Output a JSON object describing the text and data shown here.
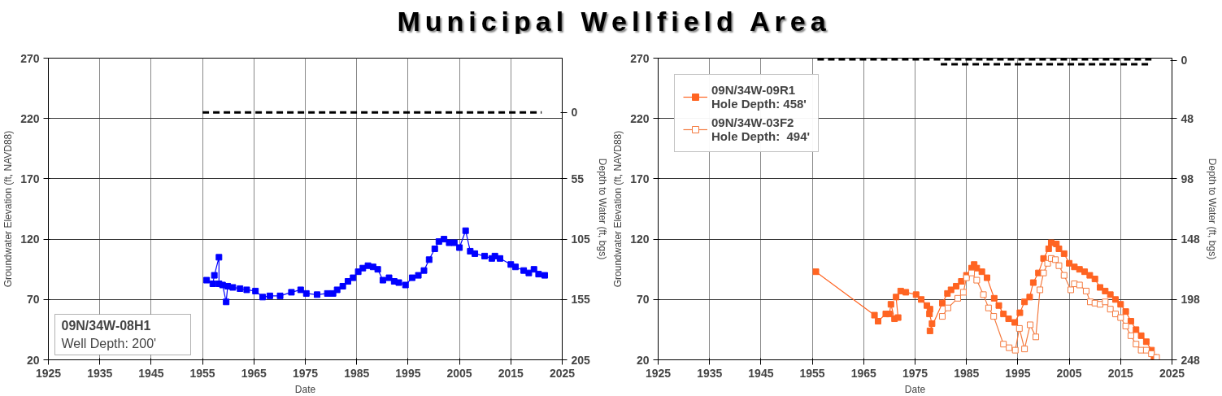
{
  "chart_data": [
    {
      "type": "line",
      "title": "Municipal Wellfield Area",
      "xlabel": "Date",
      "ylabel": "Groundwater Elevation (ft, NAVD88)",
      "y2label": "Depth to Water (ft, bgs)",
      "xlim": [
        1925,
        2025
      ],
      "xticks": [
        1925,
        1935,
        1945,
        1955,
        1965,
        1975,
        1985,
        1995,
        2005,
        2015,
        2025
      ],
      "ylim": [
        20,
        270
      ],
      "yticks": [
        20,
        70,
        120,
        170,
        220,
        270
      ],
      "y2lim": [
        205,
        -45
      ],
      "y2ticks": [
        0,
        55,
        105,
        155,
        205
      ],
      "grid": true,
      "marker": "square",
      "line_style": "solid",
      "annotations": [
        "09N/34W-08H1",
        "Well Depth: 200'"
      ],
      "series": [
        {
          "color": "#0000ff",
          "x": [
            1955.8,
            1957.0,
            1957.3,
            1958.2,
            1958.2,
            1958.9,
            1959.6,
            1959.9,
            1960.9,
            1962.3,
            1963.6,
            1965.3,
            1966.7,
            1968.1,
            1970.1,
            1972.3,
            1974.1,
            1975.2,
            1977.3,
            1979.3,
            1980.4,
            1981.2,
            1982.3,
            1983.3,
            1984.3,
            1985.3,
            1986.2,
            1987.2,
            1988.2,
            1989.1,
            1990.1,
            1991.3,
            1992.3,
            1993.2,
            1994.5,
            1995.8,
            1997.0,
            1998.1,
            1999.1,
            2000.2,
            2001.0,
            2002.0,
            2003.0,
            2004.0,
            2005.0,
            2006.2,
            2007.1,
            2008.0,
            2009.9,
            2011.3,
            2011.9,
            2012.9,
            2015.0,
            2015.9,
            2017.5,
            2018.5,
            2019.5,
            2020.4,
            2021.6
          ],
          "values": [
            86,
            83,
            90,
            105,
            83,
            82,
            68,
            81,
            80,
            79,
            78,
            77,
            72,
            73,
            73,
            76,
            78,
            75,
            74,
            75,
            75,
            78,
            81,
            85,
            88,
            93,
            96,
            98,
            97,
            95,
            86,
            88,
            85,
            84,
            82,
            88,
            90,
            94,
            103,
            112,
            118,
            120,
            117,
            117,
            113,
            127,
            110,
            108,
            106,
            104,
            106,
            104,
            99,
            97,
            94,
            92,
            95,
            91,
            90
          ]
        },
        {
          "color": "#000000",
          "axis": "y2",
          "marker": "none",
          "line_style": "dashed",
          "x": [
            1955,
            2021
          ],
          "values": [
            0,
            0
          ]
        }
      ]
    },
    {
      "type": "line",
      "xlabel": "Date",
      "ylabel": "Groundwater Elevation (ft, NAVD88)",
      "y2label": "Depth to Water (ft, bgs)",
      "xlim": [
        1925,
        2025
      ],
      "xticks": [
        1925,
        1935,
        1945,
        1955,
        1965,
        1975,
        1985,
        1995,
        2005,
        2015,
        2025
      ],
      "ylim": [
        20,
        270
      ],
      "yticks": [
        20,
        70,
        120,
        170,
        220,
        270
      ],
      "y2lim": [
        248,
        -2
      ],
      "y2ticks": [
        0,
        48,
        98,
        148,
        198,
        248
      ],
      "grid": true,
      "legend": "top left",
      "marker": "square",
      "line_style": "solid",
      "series": [
        {
          "name": "09N/34W-09R1\nHole Depth: 458'",
          "color": "#ff6422",
          "x": [
            1955.7,
            1967.1,
            1967.8,
            1969.3,
            1970.0,
            1970.3,
            1971.0,
            1971.7,
            1971.3,
            1972.2,
            1973.2,
            1975.2,
            1976.2,
            1977.3,
            1977.9,
            1977.8,
            1978.3,
            1977.9,
            1980.3,
            1981.3,
            1982,
            1983,
            1984,
            1985,
            1986,
            1986.5,
            1987,
            1988,
            1989,
            1990.4,
            1991.3,
            1992.2,
            1993.2,
            1994.4,
            1995.4,
            1996.3,
            1997.3,
            1998,
            1999,
            2000,
            2001,
            2001.5,
            2002.5,
            2003,
            2004,
            2005,
            2006,
            2007,
            2008,
            2009,
            2010,
            2011,
            2012,
            2013,
            2014,
            2015,
            2016,
            2017,
            2018,
            2019,
            2020,
            2021,
            2021.5
          ],
          "values": [
            93,
            57,
            52,
            58,
            58,
            66,
            54,
            55,
            72,
            77,
            76,
            74,
            70,
            65,
            62,
            58,
            50,
            44,
            67,
            75,
            78,
            81,
            85,
            90,
            96,
            99,
            96,
            93,
            88,
            71,
            65,
            58,
            54,
            51,
            59,
            68,
            72,
            84,
            92,
            104,
            112,
            117,
            116,
            112,
            108,
            100,
            97,
            95,
            93,
            90,
            87,
            80,
            77,
            74,
            70,
            66,
            60,
            52,
            45,
            40,
            35,
            28,
            22
          ]
        },
        {
          "name": "09N/34W-03F2\nHole Depth:  494'",
          "color": "#f47a3f",
          "marker": "square_open",
          "x": [
            1980.3,
            1981.4,
            1983.3,
            1984.4,
            1985,
            1986,
            1987,
            1988.3,
            1989.3,
            1990.3,
            1992.2,
            1993.3,
            1994.5,
            1995.3,
            1996.3,
            1997.4,
            1998.5,
            1999.3,
            2000.0,
            2000.8,
            2001.5,
            2002.3,
            2003,
            2004,
            2005.3,
            2006,
            2007,
            2008.3,
            2009.1,
            2010,
            2011,
            2012,
            2013,
            2014,
            2015,
            2016,
            2017,
            2018,
            2019,
            2020,
            2021,
            2022
          ],
          "values": [
            56,
            63,
            71,
            76,
            88,
            92,
            86,
            74,
            63,
            56,
            33,
            30,
            28,
            46,
            29,
            49,
            39,
            78,
            92,
            100,
            104,
            103,
            98,
            90,
            78,
            83,
            82,
            77,
            68,
            67,
            66,
            68,
            62,
            58,
            55,
            48,
            40,
            33,
            28,
            28,
            25,
            22
          ]
        },
        {
          "color": "#000000",
          "axis": "y2",
          "marker": "none",
          "line_style": "dashed",
          "x": [
            1956,
            2021
          ],
          "values": [
            -1,
            -1
          ]
        },
        {
          "color": "#000000",
          "axis": "y2",
          "marker": "none",
          "line_style": "dashed",
          "x": [
            1980,
            2021
          ],
          "values": [
            3,
            3
          ]
        }
      ]
    }
  ]
}
